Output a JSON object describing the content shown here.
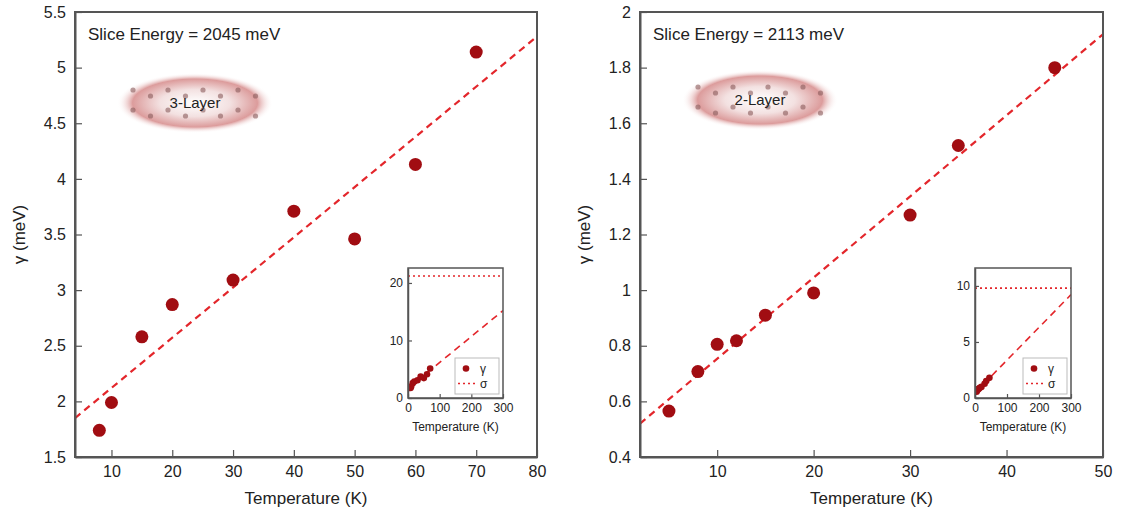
{
  "chart_data": [
    {
      "type": "scatter",
      "annotations": [
        "Slice Energy = 2045 meV",
        "3-Layer"
      ],
      "x_label": "Temperature (K)",
      "y_label": "γ (meV)",
      "xlim": [
        4,
        80
      ],
      "xticks": [
        10,
        20,
        30,
        40,
        50,
        60,
        70,
        80
      ],
      "ylim": [
        1.5,
        5.5
      ],
      "yticks": [
        1.5,
        2,
        2.5,
        3,
        3.5,
        4,
        4.5,
        5,
        5.5
      ],
      "series": [
        {
          "type": "scatter",
          "marker": "circle",
          "color": "#a10d12",
          "x": [
            8,
            10,
            15,
            20,
            30,
            40,
            50,
            60,
            70
          ],
          "values": [
            1.74,
            1.99,
            2.58,
            2.87,
            3.09,
            3.71,
            3.46,
            4.13,
            5.14
          ]
        },
        {
          "type": "line",
          "line_style": "dashed",
          "color": "#e3262b",
          "x": [
            4,
            80
          ],
          "values": [
            1.85,
            5.28
          ]
        }
      ],
      "inset": {
        "type": "scatter",
        "x_label": "Temperature (K)",
        "xlim": [
          0,
          300
        ],
        "xticks": [
          0,
          100,
          200,
          300
        ],
        "ylim": [
          0,
          22.6
        ],
        "yticks": [
          0,
          10,
          20
        ],
        "legend": "lower right",
        "series": [
          {
            "name": "γ",
            "type": "scatter",
            "marker": "circle",
            "color": "#a10d12",
            "x": [
              8,
              10,
              15,
              20,
              30,
              40,
              50,
              60,
              70
            ],
            "values": [
              1.74,
              1.99,
              2.58,
              2.87,
              3.09,
              3.71,
              3.46,
              4.13,
              5.14
            ]
          },
          {
            "type": "line",
            "line_style": "dashed",
            "color": "#e3262b",
            "x": [
              0,
              300
            ],
            "values": [
              1.67,
              15.2
            ]
          },
          {
            "name": "σ",
            "type": "line",
            "line_style": "dotted",
            "color": "#e3262b",
            "x": [
              0,
              300
            ],
            "values": [
              21.2,
              21.2
            ]
          }
        ]
      }
    },
    {
      "type": "scatter",
      "annotations": [
        "Slice Energy = 2113 meV",
        "2-Layer"
      ],
      "x_label": "Temperature (K)",
      "y_label": "γ (meV)",
      "xlim": [
        2,
        50
      ],
      "xticks": [
        10,
        20,
        30,
        40,
        50
      ],
      "ylim": [
        0.4,
        2
      ],
      "yticks": [
        0.4,
        0.6,
        0.8,
        1,
        1.2,
        1.4,
        1.6,
        1.8,
        2
      ],
      "series": [
        {
          "type": "scatter",
          "marker": "circle",
          "color": "#a10d12",
          "x": [
            5,
            8,
            10,
            12,
            15,
            20,
            30,
            35,
            45
          ],
          "values": [
            0.565,
            0.707,
            0.805,
            0.818,
            0.91,
            0.99,
            1.27,
            1.52,
            1.8
          ]
        },
        {
          "type": "line",
          "line_style": "dashed",
          "color": "#e3262b",
          "x": [
            2,
            50
          ],
          "values": [
            0.52,
            1.92
          ]
        }
      ],
      "inset": {
        "type": "scatter",
        "x_label": "Temperature (K)",
        "xlim": [
          0,
          300
        ],
        "xticks": [
          0,
          100,
          200,
          300
        ],
        "ylim": [
          0,
          11.6
        ],
        "yticks": [
          0,
          5,
          10
        ],
        "legend": "lower right",
        "series": [
          {
            "name": "γ",
            "type": "scatter",
            "marker": "circle",
            "color": "#a10d12",
            "x": [
              5,
              8,
              10,
              12,
              15,
              20,
              30,
              35,
              45
            ],
            "values": [
              0.565,
              0.707,
              0.805,
              0.818,
              0.91,
              0.99,
              1.27,
              1.52,
              1.8
            ]
          },
          {
            "type": "line",
            "line_style": "dashed",
            "color": "#e3262b",
            "x": [
              0,
              300
            ],
            "values": [
              0.46,
              9.22
            ]
          },
          {
            "name": "σ",
            "type": "line",
            "line_style": "dotted",
            "color": "#e3262b",
            "x": [
              0,
              300
            ],
            "values": [
              9.8,
              9.8
            ]
          }
        ]
      }
    }
  ]
}
